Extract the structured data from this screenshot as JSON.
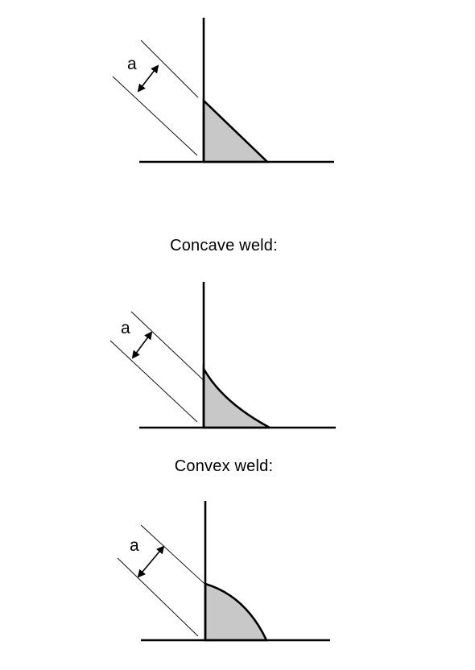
{
  "diagrams": [
    {
      "id": "flat-weld",
      "caption": "",
      "dimension_label": "a"
    },
    {
      "id": "concave-weld",
      "caption": "Concave weld:",
      "dimension_label": "a"
    },
    {
      "id": "convex-weld",
      "caption": "Convex weld:",
      "dimension_label": "a"
    }
  ],
  "colors": {
    "weld_fill": "#c8c8c8",
    "line": "#000000",
    "background": "#ffffff"
  }
}
